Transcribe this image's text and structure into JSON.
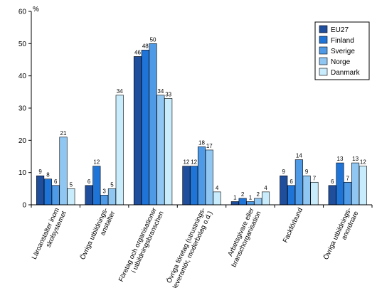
{
  "chart_data": {
    "type": "bar",
    "ylabel": "%",
    "ylim": [
      0,
      60
    ],
    "yticks": [
      0,
      10,
      20,
      30,
      40,
      50,
      60
    ],
    "grid": false,
    "legend_position": "top-right",
    "categories": [
      [
        "Läroanstalter inom",
        "skolsystemet"
      ],
      [
        "Övriga utbildnings-",
        "anstalter"
      ],
      [
        "Företag och organisationer",
        "i utbildningsbranschen"
      ],
      [
        "Övriga företag (utrustnings-",
        "leverantör, moderbolag o.d.)"
      ],
      [
        "Arbetsgivare eller",
        "branschorganisation"
      ],
      [
        "Fackförbund"
      ],
      [
        "Övriga utbildnings-",
        "anordnare"
      ]
    ],
    "series": [
      {
        "name": "EU27",
        "color": "#1f4e9c",
        "values": [
          9,
          6,
          46,
          12,
          1,
          9,
          6
        ]
      },
      {
        "name": "Finland",
        "color": "#1f74d8",
        "values": [
          8,
          12,
          48,
          12,
          2,
          6,
          13
        ]
      },
      {
        "name": "Sverige",
        "color": "#4f9ae6",
        "values": [
          6,
          3,
          50,
          18,
          1,
          14,
          7
        ]
      },
      {
        "name": "Norge",
        "color": "#8fc6f2",
        "values": [
          21,
          5,
          34,
          17,
          2,
          9,
          13
        ]
      },
      {
        "name": "Danmark",
        "color": "#c8ecfb",
        "values": [
          5,
          34,
          33,
          4,
          4,
          7,
          12
        ]
      }
    ]
  }
}
